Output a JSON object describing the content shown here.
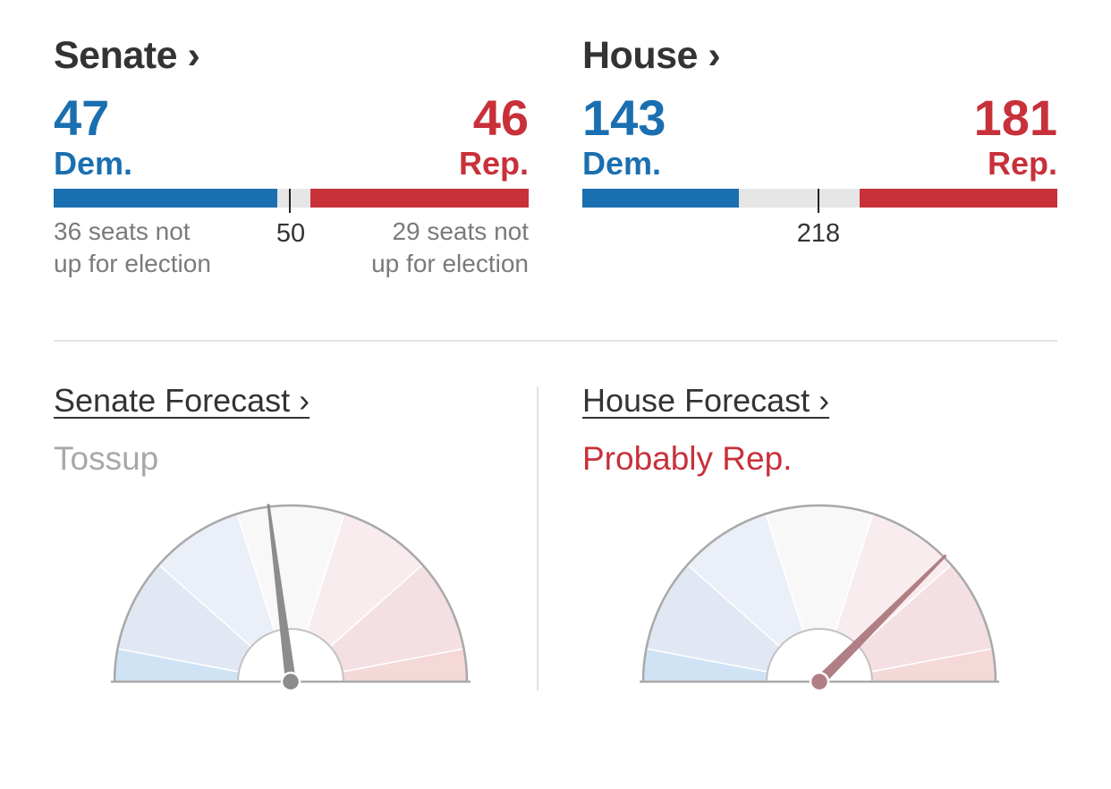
{
  "senate": {
    "title": "Senate ›",
    "dem_count": "47",
    "dem_label": "Dem.",
    "rep_count": "46",
    "rep_label": "Rep.",
    "majority_mark": "50",
    "dem_note_line1": "36 seats not",
    "dem_note_line2": "up for election",
    "rep_note_line1": "29 seats not",
    "rep_note_line2": "up for election",
    "total_seats": 100,
    "majority_value": 50,
    "dem_seats": 47,
    "rep_seats": 46
  },
  "house": {
    "title": "House ›",
    "dem_count": "143",
    "dem_label": "Dem.",
    "rep_count": "181",
    "rep_label": "Rep.",
    "majority_mark": "218",
    "total_seats": 435,
    "majority_value": 218,
    "dem_seats": 143,
    "rep_seats": 181
  },
  "senate_forecast": {
    "title": "Senate Forecast ›",
    "status": "Tossup",
    "needle_fraction": 0.46
  },
  "house_forecast": {
    "title": "House Forecast ›",
    "status": "Probably Rep.",
    "needle_fraction": 0.75
  },
  "colors": {
    "dem": "#1a6fb0",
    "rep": "#c8303a",
    "tossup_text": "#a8a8a8",
    "needle_neutral": "#8c8c8c",
    "needle_rep": "#b07f84",
    "gauge_wedges": [
      "#cfe3f5",
      "#e1e8f4",
      "#ebeff8",
      "#f8f8f8",
      "#f9ecee",
      "#f4dfe2",
      "#f5d8d8"
    ]
  }
}
